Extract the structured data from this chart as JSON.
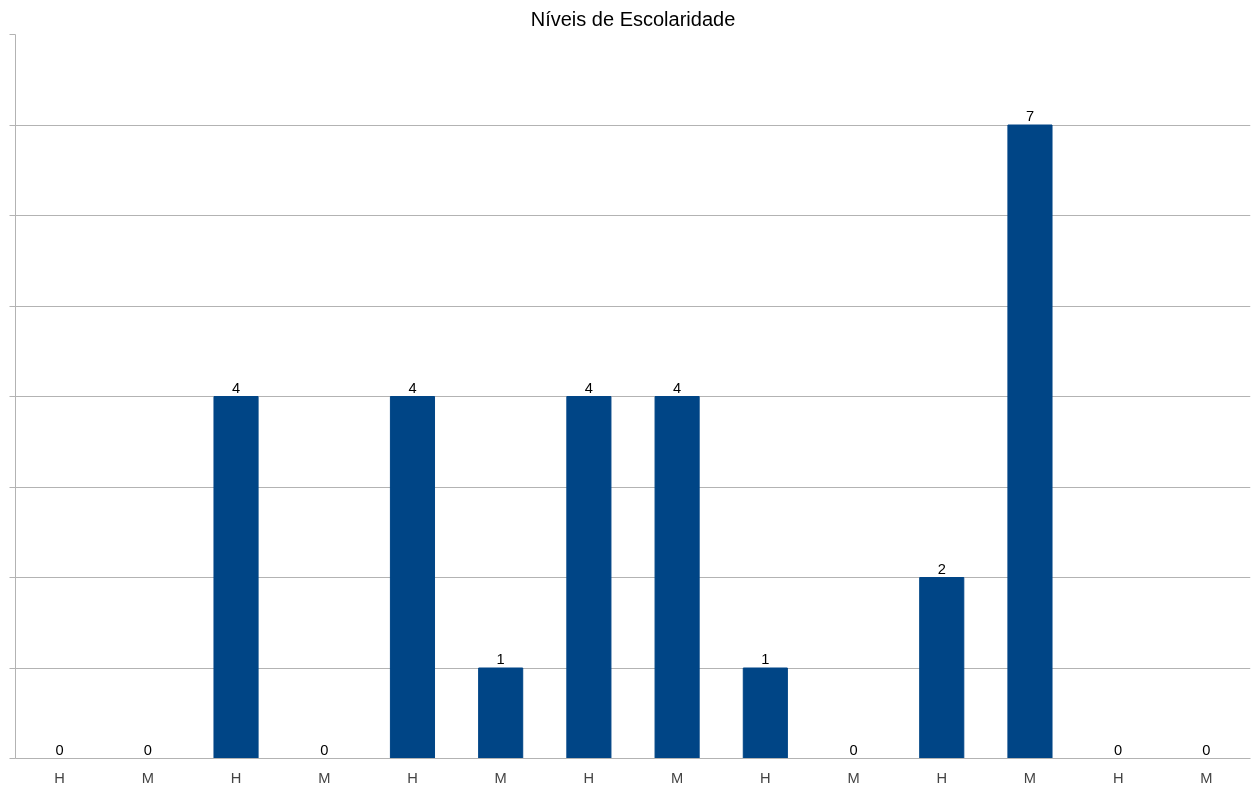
{
  "chart_data": {
    "type": "bar",
    "title": "Níveis de Escolaridade",
    "categories": [
      "H",
      "M",
      "H",
      "M",
      "H",
      "M",
      "H",
      "M",
      "H",
      "M",
      "H",
      "M",
      "H",
      "M"
    ],
    "values": [
      0,
      0,
      4,
      0,
      4,
      1,
      4,
      4,
      1,
      0,
      2,
      7,
      0,
      0
    ],
    "color": "#004586",
    "ylim": [
      0,
      8
    ],
    "yticks": [
      {
        "value": 0,
        "label": null
      },
      {
        "value": 1,
        "label": null
      },
      {
        "value": 2,
        "label": null
      },
      {
        "value": 3,
        "label": null
      },
      {
        "value": 4,
        "label": null
      },
      {
        "value": 5,
        "label": null
      },
      {
        "value": 6,
        "label": null
      },
      {
        "value": 7,
        "label": null
      },
      {
        "value": 8,
        "label": null
      }
    ],
    "grid": "y",
    "tick_labels": "x",
    "data_labels": true
  }
}
